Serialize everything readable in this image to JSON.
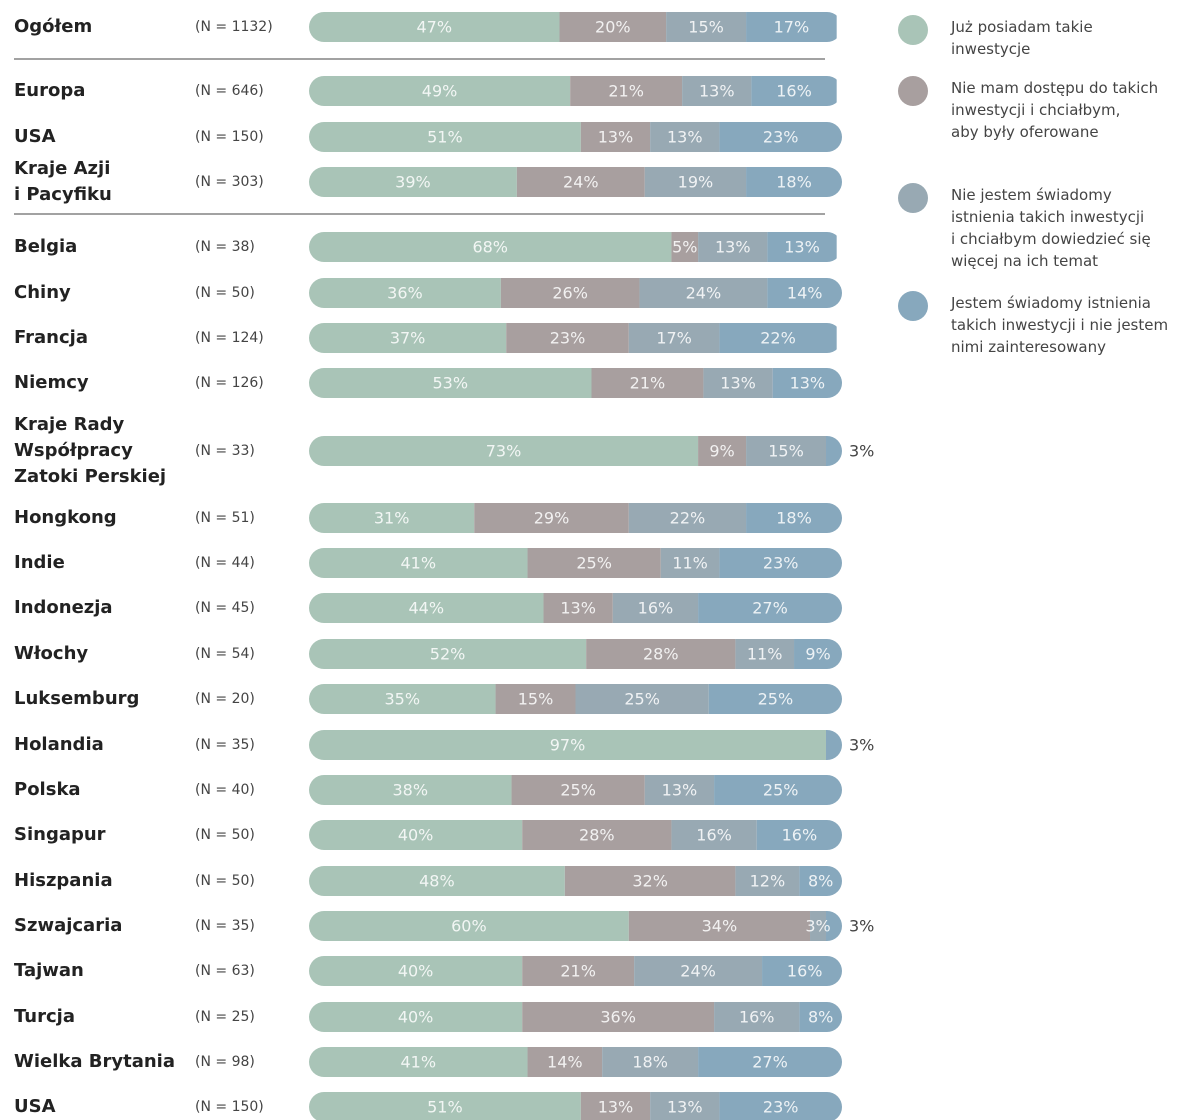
{
  "chart_data": {
    "type": "stacked-bar-100",
    "categories": [
      "Ogółem",
      "Europa",
      "USA",
      "Kraje Azji\ni Pacyfiku",
      "Belgia",
      "Chiny",
      "Francja",
      "Niemcy",
      "Kraje Rady\nWspółpracy\nZatoki Perskiej",
      "Hongkong",
      "Indie",
      "Indonezja",
      "Włochy",
      "Luksemburg",
      "Holandia",
      "Polska",
      "Singapur",
      "Hiszpania",
      "Szwajcaria",
      "Tajwan",
      "Turcja",
      "Wielka Brytania",
      "USA"
    ],
    "n_labels": [
      "(N = 1132)",
      "(N = 646)",
      "(N = 150)",
      "(N = 303)",
      "(N = 38)",
      "(N = 50)",
      "(N = 124)",
      "(N = 126)",
      "(N = 33)",
      "(N = 51)",
      "(N = 44)",
      "(N = 45)",
      "(N = 54)",
      "(N = 20)",
      "(N = 35)",
      "(N = 40)",
      "(N = 50)",
      "(N = 50)",
      "(N = 35)",
      "(N = 63)",
      "(N = 25)",
      "(N = 98)",
      "(N = 150)"
    ],
    "xlim": [
      0,
      100
    ],
    "series": [
      {
        "name": "Już posiadam takie\ninwestycje",
        "color": "#a9c4b7",
        "values": [
          47,
          49,
          51,
          39,
          68,
          36,
          37,
          53,
          73,
          31,
          41,
          44,
          52,
          35,
          97,
          38,
          40,
          48,
          60,
          40,
          40,
          41,
          51
        ],
        "value_labels": [
          "47%",
          "49%",
          "51%",
          "39%",
          "68%",
          "36%",
          "37%",
          "53%",
          "73%",
          "31%",
          "41%",
          "44%",
          "52%",
          "35%",
          "97%",
          "38%",
          "40%",
          "48%",
          "60%",
          "40%",
          "40%",
          "41%",
          "51%"
        ]
      },
      {
        "name": "Nie mam dostępu do takich\ninwestycji i chciałbym,\naby były oferowane",
        "color": "#a89f9f",
        "values": [
          20,
          21,
          13,
          24,
          5,
          26,
          23,
          21,
          9,
          29,
          25,
          13,
          28,
          15,
          null,
          25,
          28,
          32,
          34,
          21,
          36,
          14,
          13
        ],
        "value_labels": [
          "20%",
          "21%",
          "13%",
          "24%",
          "5%",
          "26%",
          "23%",
          "21%",
          "9%",
          "29%",
          "25%",
          "13%",
          "28%",
          "15%",
          null,
          "25%",
          "28%",
          "32%",
          "34%",
          "21%",
          "36%",
          "14%",
          "13%"
        ]
      },
      {
        "name": "Nie jestem świadomy\nistnienia takich inwestycji\ni chciałbym dowiedzieć się\nwięcej na ich temat",
        "color": "#98a9b3",
        "values": [
          15,
          13,
          13,
          19,
          13,
          24,
          17,
          13,
          15,
          22,
          11,
          16,
          11,
          25,
          null,
          13,
          16,
          12,
          3,
          24,
          16,
          18,
          13
        ],
        "value_labels": [
          "15%",
          "13%",
          "13%",
          "19%",
          "13%",
          "24%",
          "17%",
          "13%",
          "15%",
          "22%",
          "11%",
          "16%",
          "11%",
          "25%",
          null,
          "13%",
          "16%",
          "12%",
          "3%",
          "24%",
          "16%",
          "18%",
          "13%"
        ]
      },
      {
        "name": "Jestem świadomy istnienia\ntakich inwestycji i nie jestem\nnimi zainteresowany",
        "color": "#87a8bd",
        "values": [
          17,
          16,
          23,
          18,
          13,
          14,
          22,
          13,
          3,
          18,
          23,
          27,
          9,
          25,
          3,
          25,
          16,
          8,
          3,
          16,
          8,
          27,
          23
        ],
        "value_labels": [
          "17%",
          "16%",
          "23%",
          "18%",
          "13%",
          "14%",
          "22%",
          "13%",
          "3%",
          "18%",
          "23%",
          "27%",
          "9%",
          "25%",
          "3%",
          "25%",
          "16%",
          "8%",
          "3%",
          "16%",
          "8%",
          "27%",
          "23%"
        ]
      }
    ]
  }
}
